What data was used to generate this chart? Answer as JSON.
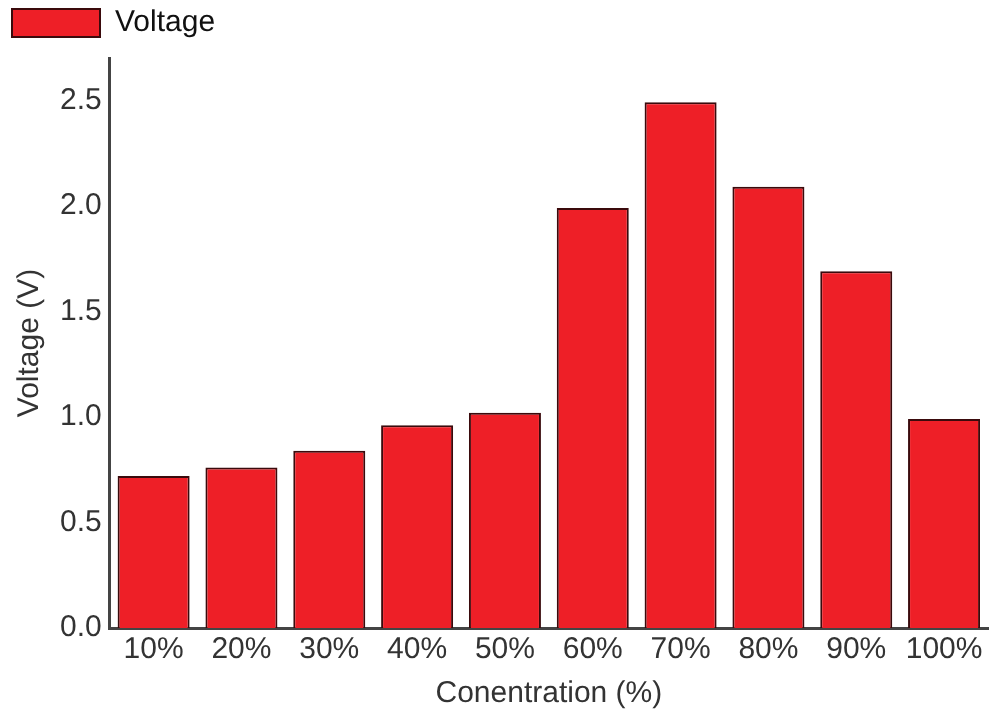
{
  "chart_data": {
    "type": "bar",
    "xlabel": "Conentration (%)",
    "ylabel": "Voltage (V)",
    "categories": [
      "10%",
      "20%",
      "30%",
      "40%",
      "50%",
      "60%",
      "70%",
      "80%",
      "90%",
      "100%"
    ],
    "series": [
      {
        "name": "Voltage",
        "color": "#ee1f27",
        "values": [
          0.72,
          0.76,
          0.84,
          0.96,
          1.02,
          1.99,
          2.49,
          2.09,
          1.69,
          0.99
        ]
      }
    ],
    "ylim": [
      0,
      2.7
    ],
    "yticks": [
      {
        "value": 0,
        "label": "0.0"
      },
      {
        "value": 0.5,
        "label": "0.5"
      },
      {
        "value": 1,
        "label": "1.0"
      },
      {
        "value": 1.5,
        "label": "1.5"
      },
      {
        "value": 2,
        "label": "2.0"
      },
      {
        "value": 2.5,
        "label": "2.5"
      }
    ],
    "grid": false,
    "legend": "top left"
  }
}
